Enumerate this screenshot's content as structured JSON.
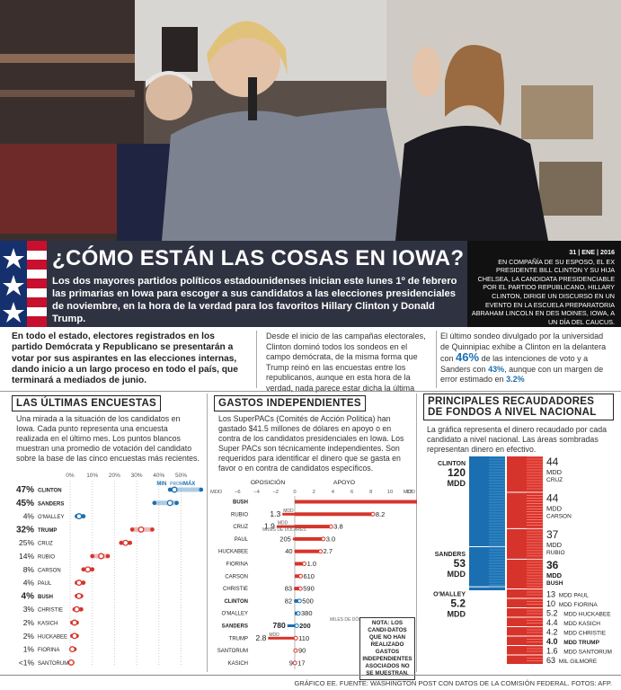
{
  "hero": {
    "title": "¿CÓMO ESTÁN LAS COSAS EN IOWA?",
    "subtitle": "Los dos mayores partidos políticos estadounidenses inician este lunes 1º de febrero las primarias en Iowa para escoger a sus candidatos a las elecciones presidenciales de noviembre, en la hora de la verdad para los favoritos Hillary Clinton y Donald Trump."
  },
  "caption": {
    "date": "31 | ENE | 2016",
    "text": "EN COMPAÑÍA DE SU ESPOSO, EL EX PRESIDENTE BILL CLINTON Y SU HIJA CHELSEA, LA CANDIDATA PRESIDENCIABLE POR EL PARTIDO REPUBLICANO, HILLARY CLINTON, DIRIGE UN DISCURSO EN UN EVENTO EN LA ESCUELA PREPARATORIA ABRAHAM LINCOLN EN DES MOINES, IOWA, A UN DÍA DEL CAUCUS.",
    "credit": "FOTO: AFP."
  },
  "intro": {
    "col1": "En todo el estado, electores registrados en los partido Demócrata y Republicano se presentarán a votar por sus aspirantes en las elecciones internas, dando inicio a un largo proceso en todo el país, que terminará a mediados de junio.",
    "col2": "Desde el inicio de las campañas electorales, Clinton dominó todos los sondeos en el campo demócrata, de la misma forma que Trump reinó en las encuestas entre los republicanos, aunque en esta hora de la verdad, nada parece estar dicha la última palabra.",
    "col3_a": "El último sondeo divulgado por la universidad de Quinnipiac exhibe a Clinton en la delantera con",
    "col3_pct1": "46%",
    "col3_b": "de las intenciones de voto y a Sanders con",
    "col3_pct2": "43%",
    "col3_c": ", aunque con un margen de error estimado en",
    "col3_pct3": "3.2%"
  },
  "polls": {
    "title": "LAS ÚLTIMAS ENCUESTAS",
    "text": "Una mirada a la situación de los candidatos en Iowa. Cada punto representa una encuesta realizada en el último mes. Los puntos blancos muestran una promedio de votación del candidato sobre la base de las cinco encuestas más recientes.",
    "legend_min": "MIN",
    "legend_prom": "PROM",
    "legend_max": "MÁX"
  },
  "spending": {
    "title": "GASTOS INDEPENDIENTES",
    "text": "Los SuperPACs (Comités de Acción Política) han gastado $41.5 millones de dólares en apoyo o en contra de los candidatos presidenciales en Iowa. Los Super PACs son técnicamente independientes. Son requeridos para identificar el dinero que se gasta en favor o en contra de candidatos específicos.",
    "note": "NOTA: LOS CANDI-DATOS QUE NO HAN REALIZADO GASTOS INDEPENDIENTES ASOCIADOS NO SE MUESTRAN."
  },
  "fundraisers": {
    "title": "PRINCIPALES RECAUDADORES DE FONDOS A NIVEL NACIONAL",
    "text": "La gráfica representa el dinero recaudado por cada candidato a nivel nacional. Las áreas sombradas representan dinero en efectivo."
  },
  "footer": "GRÁFICO EE. FUENTE: WASHINGTON POST CON DATOS DE LA COMISIÓN FEDERAL. FOTOS: AFP.",
  "chart_data": [
    {
      "type": "scatter",
      "title": "LAS ÚLTIMAS ENCUESTAS",
      "xlabel": "%",
      "x_ticks": [
        "0%",
        "10%",
        "20%",
        "30%",
        "40%",
        "50%"
      ],
      "xlim": [
        0,
        55
      ],
      "series": [
        {
          "name": "CLINTON",
          "party": "D",
          "avg_label": "47%",
          "min": 45,
          "avg": 47,
          "max": 59
        },
        {
          "name": "SANDERS",
          "party": "D",
          "avg_label": "45%",
          "min": 38,
          "avg": 45,
          "max": 48
        },
        {
          "name": "O'MALLEY",
          "party": "D",
          "avg_label": "4%",
          "min": 3,
          "avg": 4,
          "max": 6
        },
        {
          "name": "TRUMP",
          "party": "R",
          "avg_label": "32%",
          "min": 28,
          "avg": 32,
          "max": 37
        },
        {
          "name": "CRUZ",
          "party": "R",
          "avg_label": "25%",
          "min": 23,
          "avg": 25,
          "max": 27
        },
        {
          "name": "RUBIO",
          "party": "R",
          "avg_label": "14%",
          "min": 10,
          "avg": 14,
          "max": 17
        },
        {
          "name": "CARSON",
          "party": "R",
          "avg_label": "8%",
          "min": 6,
          "avg": 8,
          "max": 10
        },
        {
          "name": "PAUL",
          "party": "R",
          "avg_label": "4%",
          "min": 3,
          "avg": 4,
          "max": 6
        },
        {
          "name": "BUSH",
          "party": "R",
          "avg_label": "4%",
          "min": 3,
          "avg": 4,
          "max": 5
        },
        {
          "name": "CHRISTIE",
          "party": "R",
          "avg_label": "3%",
          "min": 2,
          "avg": 3,
          "max": 5
        },
        {
          "name": "KASICH",
          "party": "R",
          "avg_label": "2%",
          "min": 1,
          "avg": 2,
          "max": 3
        },
        {
          "name": "HUCKABEE",
          "party": "R",
          "avg_label": "2%",
          "min": 1,
          "avg": 2,
          "max": 3
        },
        {
          "name": "FIORINA",
          "party": "R",
          "avg_label": "1%",
          "min": 1,
          "avg": 1,
          "max": 2
        },
        {
          "name": "SANTORUM",
          "party": "R",
          "avg_label": "<1%",
          "min": 0,
          "avg": 0.5,
          "max": 1
        }
      ]
    },
    {
      "type": "bar",
      "title": "GASTOS INDEPENDIENTES",
      "xlabel": "MDD",
      "opposition_label": "OPOSICIÓN",
      "support_label": "APOYO",
      "opp_ticks": [
        "6",
        "4",
        "2",
        "0"
      ],
      "sup_ticks": [
        "2",
        "4",
        "6",
        "8",
        "10",
        "12"
      ],
      "ticks_prefix": "MDD",
      "ticks_suffix": "MDD",
      "xlim": [
        -6,
        14
      ],
      "kdol_label": "MILES DE DÓLARES",
      "series": [
        {
          "name": "BUSH",
          "party": "R",
          "opposition": 0,
          "support": 14,
          "opp_label": "",
          "sup_label": "14",
          "opp_unit": "",
          "sup_unit": ""
        },
        {
          "name": "RUBIO",
          "party": "R",
          "opposition": 1.3,
          "support": 8.2,
          "opp_label": "1.3",
          "sup_label": "8.2",
          "opp_unit": "MDD",
          "sup_unit": ""
        },
        {
          "name": "CRUZ",
          "party": "R",
          "opposition": 1.9,
          "support": 3.8,
          "opp_label": "1.9",
          "sup_label": "3.8",
          "opp_unit": "MDD",
          "sup_unit": ""
        },
        {
          "name": "PAUL",
          "party": "R",
          "opposition": 0.205,
          "support": 3.0,
          "opp_label": "205",
          "sup_label": "3.0",
          "opp_unit": "",
          "sup_unit": ""
        },
        {
          "name": "HUCKABEE",
          "party": "R",
          "opposition": 0.04,
          "support": 2.7,
          "opp_label": "40",
          "sup_label": "2.7",
          "opp_unit": "",
          "sup_unit": ""
        },
        {
          "name": "FIORINA",
          "party": "R",
          "opposition": 0,
          "support": 1.0,
          "opp_label": "",
          "sup_label": "1.0",
          "opp_unit": "",
          "sup_unit": ""
        },
        {
          "name": "CARSON",
          "party": "R",
          "opposition": 0,
          "support": 0.61,
          "opp_label": "",
          "sup_label": "610",
          "opp_unit": "",
          "sup_unit": ""
        },
        {
          "name": "CHRISTIE",
          "party": "R",
          "opposition": 0.083,
          "support": 0.59,
          "opp_label": "83",
          "sup_label": "590",
          "opp_unit": "",
          "sup_unit": ""
        },
        {
          "name": "CLINTON",
          "party": "D",
          "opposition": 0.082,
          "support": 0.5,
          "opp_label": "82",
          "sup_label": "500",
          "opp_unit": "",
          "sup_unit": ""
        },
        {
          "name": "O'MALLEY",
          "party": "D",
          "opposition": 0,
          "support": 0.38,
          "opp_label": "",
          "sup_label": "380",
          "opp_unit": "",
          "sup_unit": ""
        },
        {
          "name": "SANDERS",
          "party": "D",
          "opposition": 0.78,
          "support": 0.2,
          "opp_label": "780",
          "sup_label": "200",
          "opp_unit": "",
          "sup_unit": ""
        },
        {
          "name": "TRUMP",
          "party": "R",
          "opposition": 2.8,
          "support": 0.11,
          "opp_label": "2.8",
          "sup_label": "110",
          "opp_unit": "MDD",
          "sup_unit": ""
        },
        {
          "name": "SANTORUM",
          "party": "R",
          "opposition": 0,
          "support": 0.09,
          "opp_label": "",
          "sup_label": "90",
          "opp_unit": "",
          "sup_unit": ""
        },
        {
          "name": "KASICH",
          "party": "R",
          "opposition": 0.009,
          "support": 0.017,
          "opp_label": "9",
          "sup_label": "17",
          "opp_unit": "",
          "sup_unit": ""
        }
      ]
    },
    {
      "type": "bar",
      "title": "PRINCIPALES RECAUDADORES DE FONDOS A NIVEL NACIONAL",
      "unit": "MDD",
      "democrats": [
        {
          "name": "CLINTON",
          "value": 120,
          "label": "120"
        },
        {
          "name": "SANDERS",
          "value": 53,
          "label": "53"
        },
        {
          "name": "O'MALLEY",
          "value": 5.2,
          "label": "5.2"
        }
      ],
      "republicans": [
        {
          "name": "CRUZ",
          "value": 44,
          "label": "44"
        },
        {
          "name": "CARSON",
          "value": 44,
          "label": "44"
        },
        {
          "name": "RUBIO",
          "value": 37,
          "label": "37"
        },
        {
          "name": "BUSH",
          "value": 36,
          "label": "36"
        },
        {
          "name": "PAUL",
          "value": 13,
          "label": "13"
        },
        {
          "name": "FIORINA",
          "value": 10,
          "label": "10"
        },
        {
          "name": "HUCKABEE",
          "value": 5.2,
          "label": "5.2"
        },
        {
          "name": "KASICH",
          "value": 4.4,
          "label": "4.4"
        },
        {
          "name": "CHRISTIE",
          "value": 4.2,
          "label": "4.2"
        },
        {
          "name": "TRUMP",
          "value": 4.0,
          "label": "4.0"
        },
        {
          "name": "SANTORUM",
          "value": 1.6,
          "label": "1.6"
        },
        {
          "name": "GILMORE",
          "value": 0.063,
          "label": "63",
          "unit": "MIL"
        }
      ]
    }
  ]
}
